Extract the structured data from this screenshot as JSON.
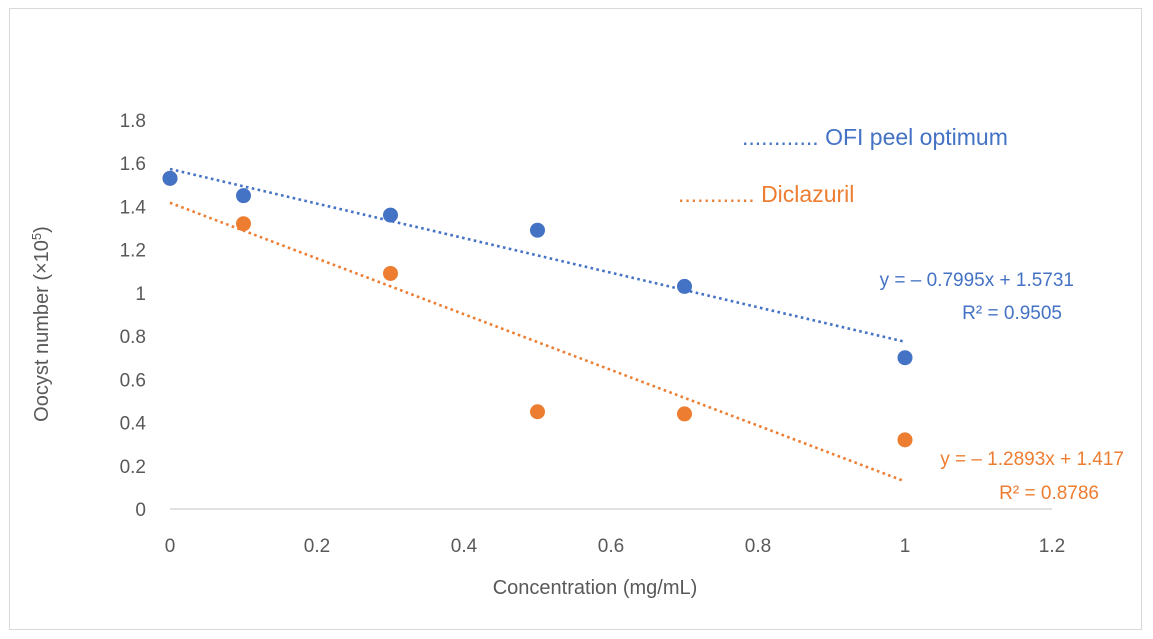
{
  "chart_data": {
    "type": "scatter",
    "xlabel": "Concentration (mg/mL)",
    "ylabel_main": "Oocyst number (×10",
    "ylabel_sup": "5",
    "ylabel_close": ")",
    "xlim": [
      0,
      1.2
    ],
    "ylim": [
      0,
      1.8
    ],
    "xticks": [
      "0",
      "0.2",
      "0.4",
      "0.6",
      "0.8",
      "1",
      "1.2"
    ],
    "yticks": [
      "0",
      "0.2",
      "0.4",
      "0.6",
      "0.8",
      "1",
      "1.2",
      "1.4",
      "1.6",
      "1.8"
    ],
    "grid": false,
    "series": [
      {
        "name": "OFI peel optimum",
        "legend_label": "............ OFI peel optimum",
        "color": "#4472C4",
        "x": [
          0,
          0.1,
          0.3,
          0.5,
          0.7,
          1
        ],
        "y": [
          1.53,
          1.45,
          1.36,
          1.29,
          1.03,
          0.7
        ],
        "trendline": {
          "slope": -0.7995,
          "intercept": 1.5731,
          "x_range": [
            0,
            1
          ],
          "style": "dotted"
        },
        "equation": "y = – 0.7995x + 1.5731",
        "r2": "R² = 0.9505"
      },
      {
        "name": "Diclazuril",
        "legend_label": "............ Diclazuril",
        "color": "#ED7D31",
        "x": [
          0,
          0.1,
          0.3,
          0.5,
          0.7,
          1
        ],
        "y": [
          1.53,
          1.32,
          1.09,
          0.45,
          0.44,
          0.32
        ],
        "trendline": {
          "slope": -1.2893,
          "intercept": 1.417,
          "x_range": [
            0,
            1
          ],
          "style": "dotted"
        },
        "equation": "y = – 1.2893x + 1.417",
        "r2": "R² = 0.8786"
      }
    ]
  }
}
